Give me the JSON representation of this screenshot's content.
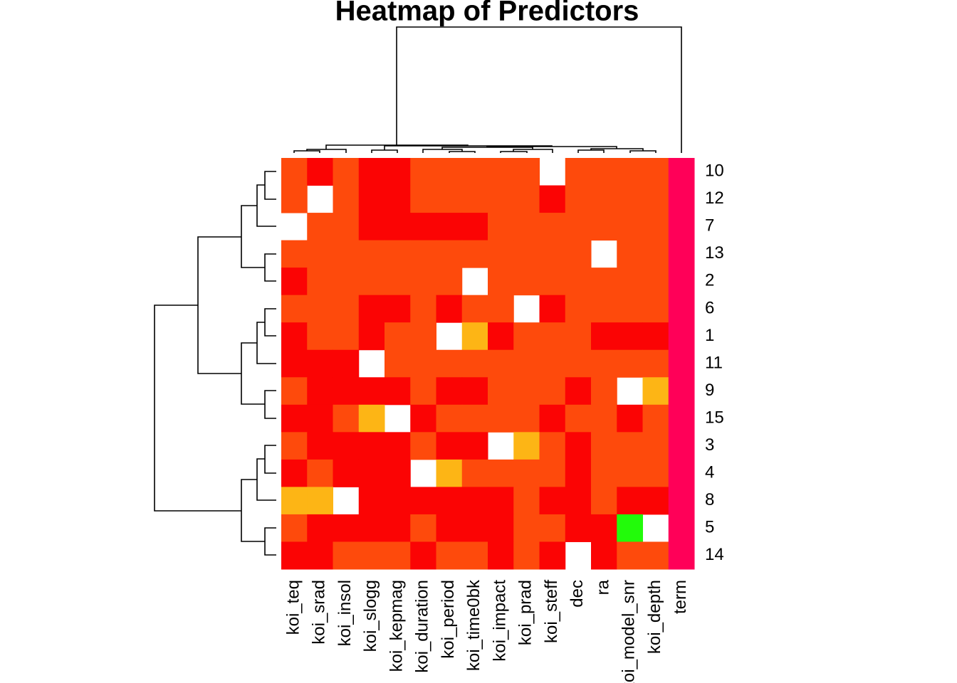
{
  "chart_data": {
    "type": "heatmap",
    "title": "Heatmap of Predictors",
    "columns": [
      "koi_teq",
      "koi_srad",
      "koi_insol",
      "koi_slogg",
      "koi_kepmag",
      "koi_duration",
      "koi_period",
      "koi_time0bk",
      "koi_impact",
      "koi_prad",
      "koi_steff",
      "dec",
      "ra",
      "koi_model_snr",
      "koi_depth",
      "term"
    ],
    "rows": [
      "10",
      "12",
      "7",
      "13",
      "2",
      "6",
      "1",
      "11",
      "9",
      "15",
      "3",
      "4",
      "8",
      "5",
      "14"
    ],
    "palette": [
      "#fb0404",
      "#fe4a0c",
      "#fdb515",
      "#22fb0a",
      "#ff0058"
    ],
    "values": [
      [
        1,
        0,
        1,
        0,
        0,
        1,
        1,
        1,
        1,
        1,
        null,
        1,
        1,
        1,
        1,
        4
      ],
      [
        1,
        null,
        1,
        0,
        0,
        1,
        1,
        1,
        1,
        1,
        0,
        1,
        1,
        1,
        1,
        4
      ],
      [
        null,
        1,
        1,
        0,
        0,
        0,
        0,
        0,
        1,
        1,
        1,
        1,
        1,
        1,
        1,
        4
      ],
      [
        1,
        1,
        1,
        1,
        1,
        1,
        1,
        1,
        1,
        1,
        1,
        1,
        null,
        1,
        1,
        4
      ],
      [
        0,
        1,
        1,
        1,
        1,
        1,
        1,
        null,
        1,
        1,
        1,
        1,
        1,
        1,
        1,
        4
      ],
      [
        1,
        1,
        1,
        0,
        0,
        1,
        0,
        1,
        1,
        null,
        0,
        1,
        1,
        1,
        1,
        4
      ],
      [
        0,
        1,
        1,
        0,
        1,
        1,
        null,
        2,
        0,
        1,
        1,
        1,
        0,
        0,
        0,
        4
      ],
      [
        0,
        0,
        0,
        null,
        1,
        1,
        1,
        1,
        1,
        1,
        1,
        1,
        1,
        1,
        1,
        4
      ],
      [
        1,
        0,
        0,
        0,
        0,
        1,
        0,
        0,
        1,
        1,
        1,
        0,
        1,
        null,
        2,
        4
      ],
      [
        0,
        0,
        1,
        2,
        null,
        0,
        1,
        1,
        1,
        1,
        0,
        1,
        1,
        0,
        1,
        4
      ],
      [
        1,
        0,
        0,
        0,
        0,
        1,
        0,
        0,
        null,
        2,
        1,
        0,
        1,
        1,
        1,
        4
      ],
      [
        0,
        1,
        0,
        0,
        0,
        null,
        2,
        1,
        1,
        1,
        1,
        0,
        1,
        1,
        1,
        4
      ],
      [
        2,
        2,
        null,
        0,
        0,
        0,
        0,
        0,
        0,
        1,
        0,
        0,
        1,
        0,
        0,
        4
      ],
      [
        1,
        0,
        0,
        0,
        0,
        1,
        0,
        0,
        0,
        1,
        1,
        0,
        0,
        3,
        null,
        4
      ],
      [
        0,
        0,
        1,
        1,
        1,
        0,
        1,
        1,
        0,
        1,
        0,
        null,
        0,
        1,
        1,
        4
      ]
    ]
  }
}
